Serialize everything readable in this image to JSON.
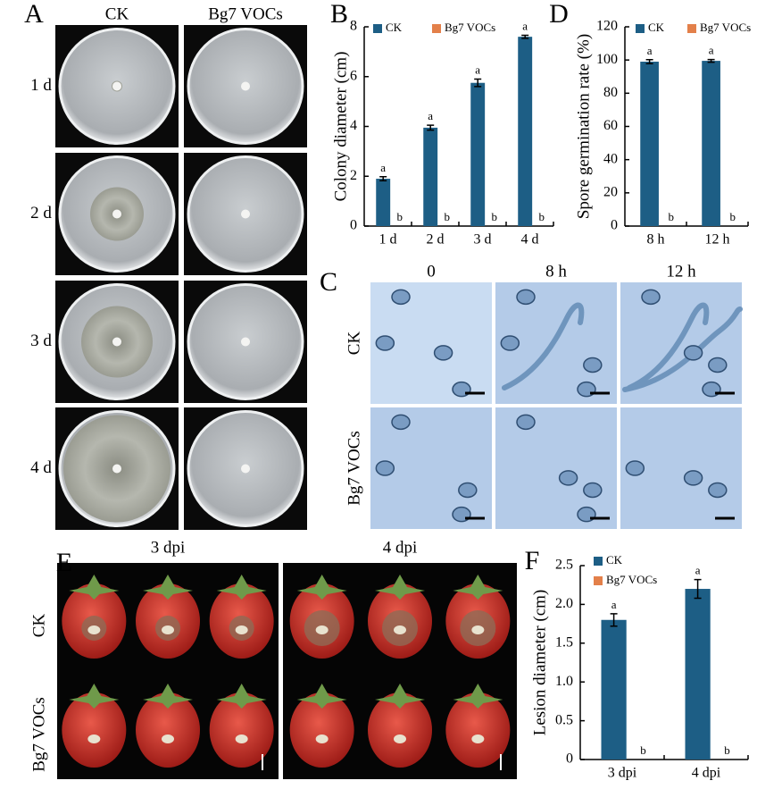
{
  "figure": {
    "panel_labels": [
      "A",
      "B",
      "C",
      "D",
      "E",
      "F"
    ],
    "panel_a": {
      "columns": [
        "CK",
        "Bg7 VOCs"
      ],
      "rows": [
        "1 d",
        "2 d",
        "3 d",
        "4 d"
      ]
    },
    "panel_c": {
      "columns": [
        "0",
        "8 h",
        "12 h"
      ],
      "rows": [
        "CK",
        "Bg7 VOCs"
      ]
    },
    "panel_e": {
      "columns": [
        "3 dpi",
        "4 dpi"
      ],
      "rows": [
        "CK",
        "Bg7 VOCs"
      ]
    }
  },
  "chart_data": [
    {
      "type": "bar",
      "ylabel": "Colony diameter (cm)",
      "categories": [
        "1 d",
        "2 d",
        "3 d",
        "4 d"
      ],
      "ylim": [
        0,
        8
      ],
      "yticks": [
        0,
        2,
        4,
        6,
        8
      ],
      "legend": "top",
      "series": [
        {
          "name": "CK",
          "color": "#1d5e85",
          "values": [
            1.9,
            3.95,
            5.75,
            7.6
          ],
          "errors": [
            0.08,
            0.1,
            0.15,
            0.06
          ],
          "letters": [
            "a",
            "a",
            "a",
            "a"
          ]
        },
        {
          "name": "Bg7 VOCs",
          "color": "#e3804a",
          "values": [
            0,
            0,
            0,
            0
          ],
          "letters": [
            "b",
            "b",
            "b",
            "b"
          ]
        }
      ]
    },
    {
      "type": "bar",
      "ylabel": "Spore germination rate (%)",
      "categories": [
        "8 h",
        "12 h"
      ],
      "ylim": [
        0,
        120
      ],
      "yticks": [
        0,
        20,
        40,
        60,
        80,
        100,
        120
      ],
      "legend": "top",
      "series": [
        {
          "name": "CK",
          "color": "#1d5e85",
          "values": [
            99,
            99.5
          ],
          "errors": [
            1.2,
            0.8
          ],
          "letters": [
            "a",
            "a"
          ]
        },
        {
          "name": "Bg7 VOCs",
          "color": "#e3804a",
          "values": [
            0,
            0
          ],
          "letters": [
            "b",
            "b"
          ]
        }
      ]
    },
    {
      "type": "bar",
      "ylabel": "Lesion diameter (cm)",
      "categories": [
        "3 dpi",
        "4 dpi"
      ],
      "ylim": [
        0,
        2.5
      ],
      "yticks": [
        0,
        0.5,
        {
          "value": 1,
          "label": "1.0"
        },
        1.5,
        {
          "value": 2,
          "label": "2.0"
        },
        2.5
      ],
      "legend": "top-left",
      "series": [
        {
          "name": "CK",
          "color": "#1d5e85",
          "values": [
            1.8,
            2.2
          ],
          "errors": [
            0.08,
            0.12
          ],
          "letters": [
            "a",
            "a"
          ]
        },
        {
          "name": "Bg7 VOCs",
          "color": "#e3804a",
          "values": [
            0,
            0
          ],
          "letters": [
            "b",
            "b"
          ]
        }
      ]
    }
  ]
}
